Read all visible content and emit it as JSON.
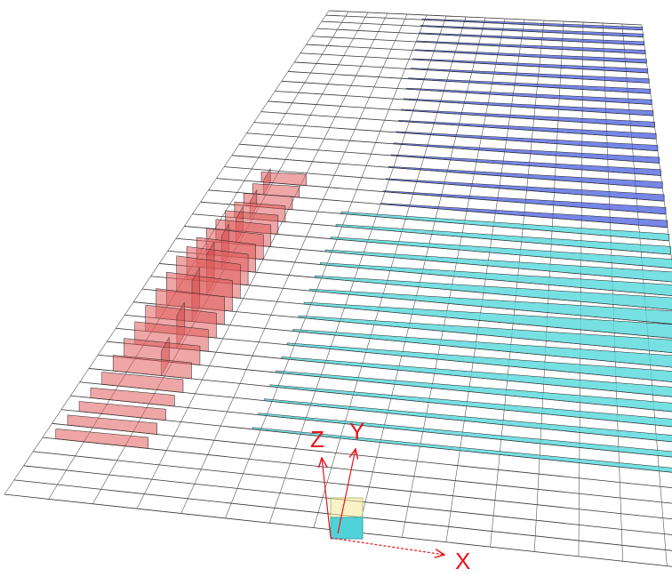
{
  "axes": {
    "z_label": "Z",
    "y_label": "Y",
    "x_label": "X"
  }
}
